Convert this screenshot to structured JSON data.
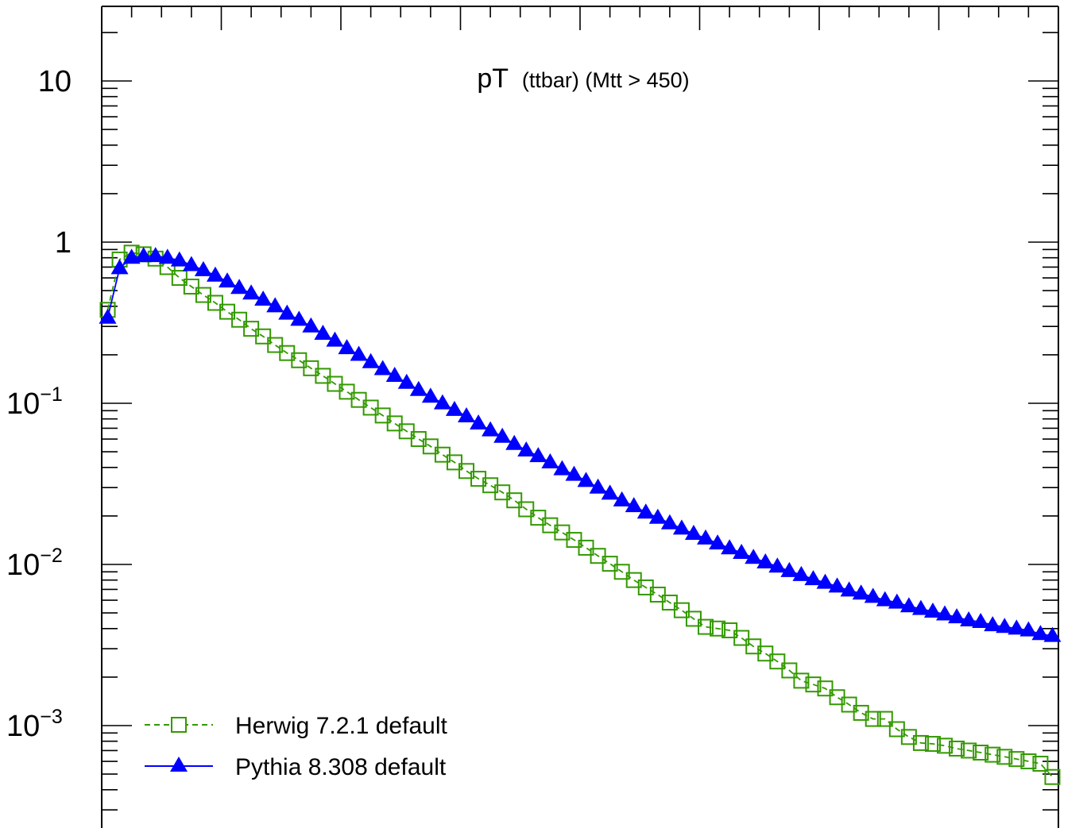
{
  "chart_data": {
    "type": "line",
    "title": "pT",
    "subtitle": "(ttbar) (Mtt > 450)",
    "xlabel": "",
    "ylabel": "",
    "log_y": true,
    "ylim": [
      0.0002,
      25
    ],
    "x": [
      1,
      2,
      3,
      4,
      5,
      6,
      7,
      8,
      9,
      10,
      11,
      12,
      13,
      14,
      15,
      16,
      17,
      18,
      19,
      20,
      21,
      22,
      23,
      24,
      25,
      26,
      27,
      28,
      29,
      30,
      31,
      32,
      33,
      34,
      35,
      36,
      37,
      38,
      39,
      40,
      41,
      42,
      43,
      44,
      45,
      46,
      47,
      48,
      49,
      50,
      51,
      52,
      53,
      54,
      55,
      56,
      57,
      58,
      59,
      60,
      61,
      62,
      63,
      64,
      65,
      66,
      67,
      68,
      69,
      70,
      71,
      72,
      73,
      74,
      75,
      76,
      77,
      78,
      79,
      80
    ],
    "xlim": [
      0.5,
      80.5
    ],
    "y_ticks": [
      {
        "value": 10,
        "base": "10",
        "exp": ""
      },
      {
        "value": 1,
        "base": "1",
        "exp": ""
      },
      {
        "value": 0.1,
        "base": "10",
        "exp": "−1"
      },
      {
        "value": 0.01,
        "base": "10",
        "exp": "−2"
      },
      {
        "value": 0.001,
        "base": "10",
        "exp": "−3"
      }
    ],
    "grid": false,
    "legend_position": "bottom-left",
    "series": [
      {
        "name": "Herwig 7.2.1 default",
        "color": "#339900",
        "marker": "open-square",
        "line": "dashed",
        "values": [
          0.38,
          0.78,
          0.86,
          0.84,
          0.79,
          0.7,
          0.6,
          0.53,
          0.47,
          0.42,
          0.37,
          0.33,
          0.29,
          0.26,
          0.23,
          0.205,
          0.185,
          0.165,
          0.148,
          0.132,
          0.118,
          0.105,
          0.094,
          0.084,
          0.075,
          0.067,
          0.06,
          0.054,
          0.048,
          0.043,
          0.038,
          0.034,
          0.031,
          0.028,
          0.025,
          0.022,
          0.0195,
          0.0175,
          0.0158,
          0.0142,
          0.0127,
          0.0113,
          0.0101,
          0.009,
          0.008,
          0.0072,
          0.0065,
          0.0058,
          0.0052,
          0.0046,
          0.0041,
          0.004,
          0.0039,
          0.0035,
          0.0031,
          0.0028,
          0.0025,
          0.0022,
          0.0019,
          0.0018,
          0.0017,
          0.0015,
          0.00135,
          0.0012,
          0.0011,
          0.0011,
          0.00095,
          0.00085,
          0.00078,
          0.00077,
          0.00075,
          0.00072,
          0.0007,
          0.00068,
          0.00066,
          0.00064,
          0.00062,
          0.0006,
          0.00058,
          0.00048
        ]
      },
      {
        "name": "Pythia 8.308 default",
        "color": "#0000ff",
        "marker": "filled-triangle",
        "line": "solid",
        "values": [
          0.34,
          0.69,
          0.8,
          0.82,
          0.82,
          0.8,
          0.77,
          0.72,
          0.67,
          0.62,
          0.57,
          0.52,
          0.48,
          0.44,
          0.4,
          0.36,
          0.33,
          0.3,
          0.27,
          0.245,
          0.22,
          0.2,
          0.18,
          0.163,
          0.148,
          0.134,
          0.121,
          0.11,
          0.1,
          0.091,
          0.083,
          0.075,
          0.068,
          0.062,
          0.056,
          0.051,
          0.047,
          0.043,
          0.039,
          0.036,
          0.033,
          0.03,
          0.0275,
          0.025,
          0.023,
          0.021,
          0.0195,
          0.018,
          0.0167,
          0.0155,
          0.0145,
          0.0135,
          0.0126,
          0.0118,
          0.011,
          0.0103,
          0.0097,
          0.0091,
          0.0086,
          0.0081,
          0.0077,
          0.0073,
          0.0069,
          0.0066,
          0.0063,
          0.006,
          0.0058,
          0.0055,
          0.0053,
          0.0051,
          0.0049,
          0.0047,
          0.0045,
          0.0044,
          0.0042,
          0.0041,
          0.004,
          0.0039,
          0.0037,
          0.0036
        ]
      }
    ]
  }
}
